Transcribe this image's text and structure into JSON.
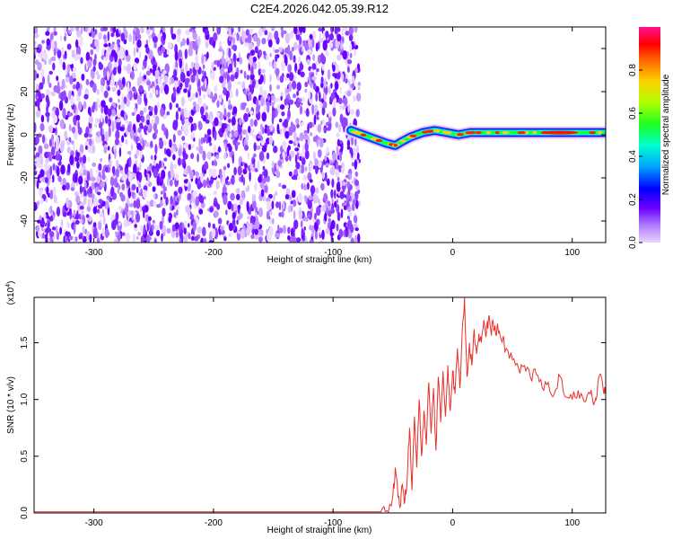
{
  "title": "C2E4.2026.042.05.39.R12",
  "chart_data": [
    {
      "type": "heatmap",
      "name": "spectrogram",
      "xlabel": "Height of straight line (km)",
      "ylabel": "Frequency (Hz)",
      "xlim": [
        -350,
        128
      ],
      "ylim": [
        -50,
        50
      ],
      "xticks": [
        -300,
        -200,
        -100,
        0,
        100
      ],
      "yticks": [
        -40,
        -20,
        0,
        20,
        40
      ],
      "noise_region_x": [
        -350,
        -78
      ],
      "signal_region_x": [
        -85,
        128
      ],
      "signal_track": {
        "x": [
          -85,
          -75,
          -65,
          -55,
          -48,
          -42,
          -35,
          -25,
          -15,
          -5,
          5,
          15,
          30,
          50,
          70,
          90,
          110,
          128
        ],
        "y": [
          2,
          0,
          -2,
          -4,
          -5,
          -3,
          -1,
          1,
          2,
          1,
          0,
          1,
          1,
          1,
          1,
          1,
          1,
          1
        ]
      },
      "colorbar": {
        "label": "Normalized spectral amplitude",
        "range": [
          0,
          1
        ],
        "ticks": [
          0.0,
          0.2,
          0.4,
          0.6,
          0.8
        ]
      }
    },
    {
      "type": "line",
      "name": "snr",
      "xlabel": "Height of straight line (km)",
      "ylabel": "SNR (10 * v/v)",
      "multiplier_label": "(x10",
      "multiplier_exp": "4",
      "multiplier_close": ")",
      "xlim": [
        -350,
        128
      ],
      "ylim": [
        0,
        1.9
      ],
      "xticks": [
        -300,
        -200,
        -100,
        0,
        100
      ],
      "yticks": [
        0.0,
        0.5,
        1.0,
        1.5
      ],
      "color": "#e8302a",
      "series": [
        {
          "name": "SNR",
          "x": [
            -350,
            -200,
            -100,
            -60,
            -55,
            -50,
            -48,
            -46,
            -44,
            -42,
            -40,
            -38,
            -36,
            -34,
            -32,
            -30,
            -28,
            -26,
            -24,
            -22,
            -20,
            -18,
            -16,
            -14,
            -12,
            -10,
            -8,
            -6,
            -4,
            -2,
            0,
            2,
            4,
            6,
            8,
            10,
            12,
            14,
            16,
            18,
            20,
            22,
            24,
            26,
            28,
            30,
            32,
            34,
            36,
            38,
            40,
            45,
            50,
            55,
            60,
            65,
            70,
            75,
            80,
            85,
            90,
            95,
            100,
            105,
            110,
            115,
            118,
            120,
            123,
            126,
            128
          ],
          "y": [
            0.01,
            0.01,
            0.01,
            0.01,
            0.02,
            0.15,
            0.4,
            0.2,
            0.05,
            0.25,
            0.1,
            0.3,
            0.75,
            0.2,
            0.85,
            0.4,
            1.0,
            0.5,
            0.9,
            0.6,
            1.15,
            0.7,
            1.1,
            0.55,
            1.2,
            0.8,
            1.25,
            0.85,
            1.3,
            0.9,
            1.25,
            1.05,
            1.45,
            1.1,
            1.6,
            1.9,
            1.2,
            1.5,
            1.3,
            1.62,
            1.4,
            1.58,
            1.5,
            1.7,
            1.55,
            1.72,
            1.6,
            1.68,
            1.58,
            1.62,
            1.55,
            1.45,
            1.35,
            1.28,
            1.3,
            1.2,
            1.22,
            1.1,
            1.15,
            1.05,
            1.2,
            1.02,
            1.0,
            1.08,
            0.98,
            1.05,
            0.95,
            1.0,
            1.22,
            1.08,
            1.12
          ]
        }
      ]
    }
  ]
}
